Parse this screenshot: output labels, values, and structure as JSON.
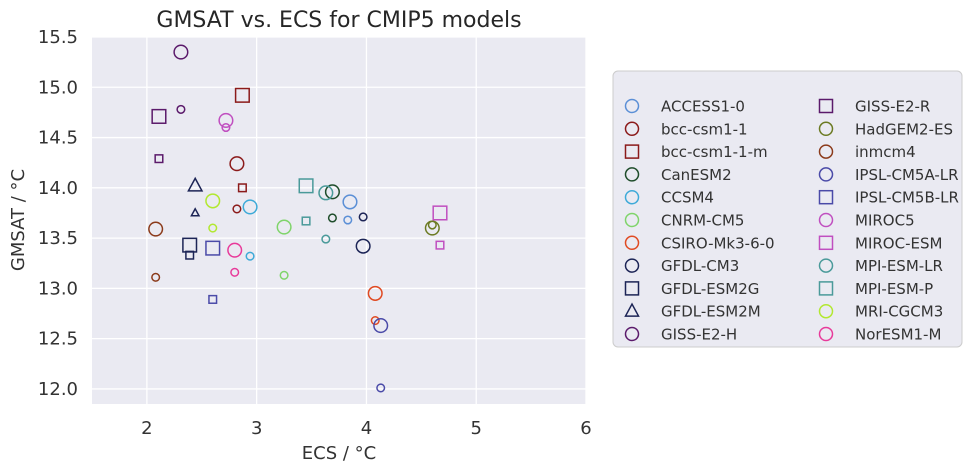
{
  "chart_data": {
    "type": "scatter",
    "title": "GMSAT vs. ECS for CMIP5 models",
    "xlabel": "ECS / °C",
    "ylabel": "GMSAT / °C",
    "xlim": [
      1.5,
      6.0
    ],
    "ylim": [
      11.85,
      15.5
    ],
    "xticks": [
      2,
      3,
      4,
      5,
      6
    ],
    "yticks": [
      12.0,
      12.5,
      13.0,
      13.5,
      14.0,
      14.5,
      15.0,
      15.5
    ],
    "grid": true,
    "legend_position": "right",
    "legend_columns": 2,
    "series": [
      {
        "name": "ACCESS1-0",
        "color": "#5b8fd6",
        "marker": "circle",
        "points": [
          {
            "x": 3.85,
            "y": 13.86,
            "size": "large"
          },
          {
            "x": 3.83,
            "y": 13.68,
            "size": "small"
          }
        ]
      },
      {
        "name": "bcc-csm1-1",
        "color": "#8b1a1a",
        "marker": "circle",
        "points": [
          {
            "x": 2.82,
            "y": 14.24,
            "size": "large"
          },
          {
            "x": 2.82,
            "y": 13.79,
            "size": "small"
          }
        ]
      },
      {
        "name": "bcc-csm1-1-m",
        "color": "#8b1a1a",
        "marker": "square",
        "points": [
          {
            "x": 2.87,
            "y": 14.92,
            "size": "large"
          },
          {
            "x": 2.87,
            "y": 14.0,
            "size": "small"
          }
        ]
      },
      {
        "name": "CanESM2",
        "color": "#1f4d2b",
        "marker": "circle",
        "points": [
          {
            "x": 3.69,
            "y": 13.96,
            "size": "large"
          },
          {
            "x": 3.69,
            "y": 13.7,
            "size": "small"
          }
        ]
      },
      {
        "name": "CCSM4",
        "color": "#3eaad8",
        "marker": "circle",
        "points": [
          {
            "x": 2.94,
            "y": 13.81,
            "size": "large"
          },
          {
            "x": 2.94,
            "y": 13.32,
            "size": "small"
          }
        ]
      },
      {
        "name": "CNRM-CM5",
        "color": "#7fd46a",
        "marker": "circle",
        "points": [
          {
            "x": 3.25,
            "y": 13.61,
            "size": "large"
          },
          {
            "x": 3.25,
            "y": 13.13,
            "size": "small"
          }
        ]
      },
      {
        "name": "CSIRO-Mk3-6-0",
        "color": "#e04a22",
        "marker": "circle",
        "points": [
          {
            "x": 4.08,
            "y": 12.95,
            "size": "large"
          },
          {
            "x": 4.08,
            "y": 12.68,
            "size": "small"
          }
        ]
      },
      {
        "name": "GFDL-CM3",
        "color": "#1c2456",
        "marker": "circle",
        "points": [
          {
            "x": 3.97,
            "y": 13.42,
            "size": "large"
          },
          {
            "x": 3.97,
            "y": 13.71,
            "size": "small"
          }
        ]
      },
      {
        "name": "GFDL-ESM2G",
        "color": "#1c2456",
        "marker": "square",
        "points": [
          {
            "x": 2.39,
            "y": 13.43,
            "size": "large"
          },
          {
            "x": 2.39,
            "y": 13.33,
            "size": "small"
          }
        ]
      },
      {
        "name": "GFDL-ESM2M",
        "color": "#1c2456",
        "marker": "triangle",
        "points": [
          {
            "x": 2.44,
            "y": 14.02,
            "size": "large"
          },
          {
            "x": 2.44,
            "y": 13.75,
            "size": "small"
          }
        ]
      },
      {
        "name": "GISS-E2-H",
        "color": "#5b1a6b",
        "marker": "circle",
        "points": [
          {
            "x": 2.31,
            "y": 15.35,
            "size": "large"
          },
          {
            "x": 2.31,
            "y": 14.78,
            "size": "small"
          }
        ]
      },
      {
        "name": "GISS-E2-R",
        "color": "#5b1a6b",
        "marker": "square",
        "points": [
          {
            "x": 2.11,
            "y": 14.71,
            "size": "large"
          },
          {
            "x": 2.11,
            "y": 14.29,
            "size": "small"
          }
        ]
      },
      {
        "name": "HadGEM2-ES",
        "color": "#6b7a22",
        "marker": "circle",
        "points": [
          {
            "x": 4.6,
            "y": 13.6,
            "size": "large"
          },
          {
            "x": 4.6,
            "y": 13.63,
            "size": "small"
          }
        ]
      },
      {
        "name": "inmcm4",
        "color": "#8b3a1a",
        "marker": "circle",
        "points": [
          {
            "x": 2.08,
            "y": 13.59,
            "size": "large"
          },
          {
            "x": 2.08,
            "y": 13.11,
            "size": "small"
          }
        ]
      },
      {
        "name": "IPSL-CM5A-LR",
        "color": "#4a4aa8",
        "marker": "circle",
        "points": [
          {
            "x": 4.13,
            "y": 12.63,
            "size": "large"
          },
          {
            "x": 4.13,
            "y": 12.01,
            "size": "small"
          }
        ]
      },
      {
        "name": "IPSL-CM5B-LR",
        "color": "#4a4aa8",
        "marker": "square",
        "points": [
          {
            "x": 2.6,
            "y": 13.4,
            "size": "large"
          },
          {
            "x": 2.6,
            "y": 12.89,
            "size": "small"
          }
        ]
      },
      {
        "name": "MIROC5",
        "color": "#c04fc0",
        "marker": "circle",
        "points": [
          {
            "x": 2.72,
            "y": 14.67,
            "size": "large"
          },
          {
            "x": 2.72,
            "y": 14.6,
            "size": "small"
          }
        ]
      },
      {
        "name": "MIROC-ESM",
        "color": "#c04fc0",
        "marker": "square",
        "points": [
          {
            "x": 4.67,
            "y": 13.75,
            "size": "large"
          },
          {
            "x": 4.67,
            "y": 13.43,
            "size": "small"
          }
        ]
      },
      {
        "name": "MPI-ESM-LR",
        "color": "#4a9a9a",
        "marker": "circle",
        "points": [
          {
            "x": 3.63,
            "y": 13.95,
            "size": "large"
          },
          {
            "x": 3.63,
            "y": 13.49,
            "size": "small"
          }
        ]
      },
      {
        "name": "MPI-ESM-P",
        "color": "#4a9a9a",
        "marker": "square",
        "points": [
          {
            "x": 3.45,
            "y": 14.02,
            "size": "large"
          },
          {
            "x": 3.45,
            "y": 13.67,
            "size": "small"
          }
        ]
      },
      {
        "name": "MRI-CGCM3",
        "color": "#b2e830",
        "marker": "circle",
        "points": [
          {
            "x": 2.6,
            "y": 13.87,
            "size": "large"
          },
          {
            "x": 2.6,
            "y": 13.6,
            "size": "small"
          }
        ]
      },
      {
        "name": "NorESM1-M",
        "color": "#e83a9a",
        "marker": "circle",
        "points": [
          {
            "x": 2.8,
            "y": 13.38,
            "size": "large"
          },
          {
            "x": 2.8,
            "y": 13.16,
            "size": "small"
          }
        ]
      }
    ]
  }
}
